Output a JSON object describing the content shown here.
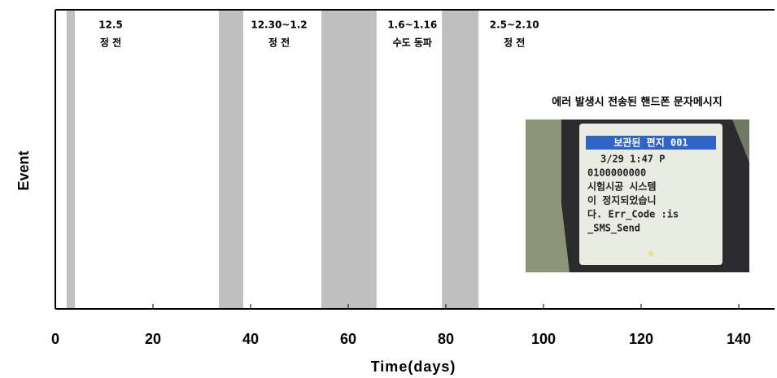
{
  "chart_data": {
    "type": "timeline",
    "xlabel": "Time(days)",
    "ylabel": "Event",
    "xlim": [
      0,
      147
    ],
    "xticks": [
      0,
      20,
      40,
      60,
      80,
      100,
      120,
      140
    ],
    "span_color": "#c0c0c0",
    "spans": [
      {
        "start": 2.3,
        "end": 4,
        "date": "12.5",
        "event": "정 전"
      },
      {
        "start": 33.5,
        "end": 38.5,
        "date": "12.30~1.2",
        "event": "정 전"
      },
      {
        "start": 54.5,
        "end": 65.8,
        "date": "1.6~1.16",
        "event": "수도 동파"
      },
      {
        "start": 79.2,
        "end": 86.7,
        "date": "2.5~2.10",
        "event": "정 전"
      }
    ],
    "inset": {
      "caption": "에러 발생시 전송된 핸드폰 문자메시지",
      "header": "보관된 편지  001",
      "lines": [
        "3/29  1:47 P",
        "0100000000",
        "시험시공 시스템",
        "이 정지되었습니",
        "다. Err_Code :is",
        "_SMS_Send"
      ]
    }
  }
}
